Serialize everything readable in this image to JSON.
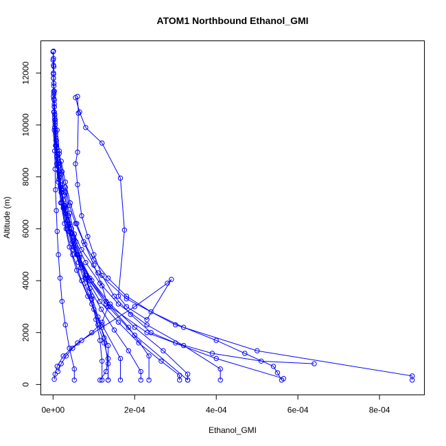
{
  "chart_data": {
    "type": "line",
    "title": "ATOM1 Northbound Ethanol_GMI",
    "xlabel": "Ethanol_GMI",
    "ylabel": "Altitude (m)",
    "xlim": [
      -3e-05,
      0.00091
    ],
    "ylim": [
      -400,
      13240
    ],
    "x_ticks": [
      0,
      0.0002,
      0.0004,
      0.0006,
      0.0008
    ],
    "x_tick_labels": [
      "0e+00",
      "2e-04",
      "4e-04",
      "6e-04",
      "8e-04"
    ],
    "y_ticks": [
      0,
      2000,
      4000,
      6000,
      8000,
      10000,
      12000
    ],
    "y_tick_labels": [
      "0",
      "2000",
      "4000",
      "6000",
      "8000",
      "10000",
      "12000"
    ],
    "series_color": "#0000ff",
    "marker": "open-circle",
    "grid": false,
    "legend": "none",
    "series": [
      {
        "x": [
          1e-06,
          1e-06,
          2e-06,
          1e-06,
          2e-06,
          3e-06,
          2e-06,
          3e-06,
          4e-06,
          5e-06,
          6e-06,
          8e-06,
          1e-05,
          1.2e-05,
          1.5e-05,
          2e-05,
          2.5e-05,
          3.5e-05,
          5e-05,
          8e-05,
          0.00013,
          0.0002,
          0.00033
        ],
        "y": [
          12840,
          12560,
          12250,
          11950,
          11600,
          11300,
          11000,
          10700,
          10400,
          10100,
          9800,
          9400,
          9000,
          8500,
          8000,
          7400,
          6800,
          6000,
          5200,
          4200,
          3100,
          1900,
          170
        ]
      },
      {
        "x": [
          0.0,
          1e-06,
          1e-06,
          2e-06,
          3e-06,
          4e-06,
          6e-06,
          9e-06,
          1.3e-05,
          1.8e-05,
          2.6e-05,
          4e-05,
          6e-05,
          9e-05,
          0.00014,
          0.00023,
          0.0004,
          0.000565
        ],
        "y": [
          12820,
          12300,
          11800,
          11300,
          10800,
          10300,
          9700,
          9100,
          8400,
          7600,
          6800,
          5900,
          5000,
          4000,
          3000,
          2000,
          1000,
          230
        ]
      },
      {
        "x": [
          0.0,
          1e-06,
          2e-06,
          2e-06,
          3e-06,
          5e-06,
          7e-06,
          1e-05,
          1.4e-05,
          2e-05,
          3e-05,
          4.5e-05,
          7e-05,
          0.00011,
          0.00018,
          0.0003,
          0.0005,
          0.00088,
          0.00088
        ],
        "y": [
          12500,
          12000,
          11500,
          11000,
          10500,
          10000,
          9400,
          8800,
          8200,
          7500,
          6800,
          6000,
          5200,
          4300,
          3300,
          2300,
          1300,
          330,
          170
        ]
      },
      {
        "x": [
          1e-06,
          2e-06,
          3e-06,
          4e-06,
          6e-06,
          8e-06,
          1.1e-05,
          1.5e-05,
          2e-05,
          2.8e-05,
          4e-05,
          5.6e-05,
          8e-05,
          0.000115,
          0.00016,
          0.00023,
          0.00032,
          0.00041,
          0.00041
        ],
        "y": [
          11800,
          11200,
          10700,
          10200,
          9700,
          9200,
          8700,
          8100,
          7500,
          6900,
          6200,
          5500,
          4700,
          3900,
          3100,
          2300,
          1500,
          600,
          170
        ]
      },
      {
        "x": [
          2e-06,
          3e-06,
          5e-06,
          7e-06,
          1e-05,
          1.5e-05,
          2.2e-05,
          3e-05,
          4.5e-05,
          6.5e-05,
          9.5e-05,
          0.00014,
          0.0002,
          0.00027,
          0.00033,
          0.00033
        ],
        "y": [
          11250,
          10700,
          10100,
          9500,
          8900,
          8200,
          7400,
          6600,
          5800,
          4900,
          4000,
          3100,
          2200,
          1300,
          400,
          170
        ]
      },
      {
        "x": [
          3e-06,
          5e-06,
          8e-06,
          1.2e-05,
          1.8e-05,
          2.7e-05,
          4e-05,
          6e-05,
          9e-05,
          0.00013,
          0.000185,
          0.000235,
          0.000235
        ],
        "y": [
          10950,
          10200,
          9400,
          8600,
          7700,
          6800,
          5900,
          5000,
          4100,
          3200,
          2200,
          1100,
          170
        ]
      },
      {
        "x": [
          1e-06,
          2e-06,
          4e-06,
          6e-06,
          9e-06,
          1.3e-05,
          1.9e-05,
          2.8e-05,
          4e-05,
          5.8e-05,
          8.5e-05,
          0.00012,
          0.000165,
          0.000165
        ],
        "y": [
          11100,
          10500,
          9900,
          9200,
          8500,
          7800,
          7000,
          6200,
          5300,
          4400,
          3400,
          2300,
          1000,
          170
        ]
      },
      {
        "x": [
          4e-06,
          6e-06,
          9e-06,
          1.4e-05,
          2.1e-05,
          3.2e-05,
          4.8e-05,
          7e-05,
          0.0001,
          0.000135,
          0.000135
        ],
        "y": [
          10400,
          9600,
          8800,
          7900,
          7000,
          6000,
          5000,
          4000,
          2900,
          1500,
          170
        ]
      },
      {
        "x": [
          2e-06,
          3e-06,
          4e-06,
          5e-06,
          6e-06,
          8e-06,
          1e-05,
          1.3e-05,
          1.7e-05,
          2.2e-05,
          3e-05,
          4e-05,
          5.2e-05,
          5.2e-05
        ],
        "y": [
          10500,
          9800,
          9000,
          8300,
          7500,
          6700,
          5900,
          5000,
          4100,
          3200,
          2300,
          1400,
          600,
          170
        ]
      },
      {
        "x": [
          5.5e-05,
          6.5e-05,
          8e-05,
          0.00012,
          0.000165,
          0.000175,
          0.00016,
          0.00018,
          0.00023,
          0.00029,
          0.00028,
          0.0002,
          0.00012,
          6e-05,
          2.5e-05,
          1e-05,
          5e-06,
          3e-06
        ],
        "y": [
          11050,
          10500,
          9900,
          9300,
          7950,
          5950,
          3400,
          3000,
          2500,
          4050,
          3900,
          3000,
          2200,
          1600,
          1100,
          700,
          400,
          200
        ]
      },
      {
        "x": [
          6e-05,
          6.2e-05,
          6e-05,
          5.5e-05,
          6e-05,
          7e-05,
          8.5e-05,
          0.0001,
          0.00012,
          0.00015,
          0.00019,
          0.00024,
          0.0003,
          0.00039,
          0.00051,
          0.00064
        ],
        "y": [
          11100,
          10450,
          8950,
          8500,
          7700,
          6500,
          5700,
          5000,
          4200,
          3400,
          2700,
          2000,
          1600,
          1200,
          900,
          800
        ]
      },
      {
        "x": [
          1e-05,
          1.5e-05,
          2.2e-05,
          3e-05,
          4e-05,
          5.2e-05,
          6.5e-05,
          8e-05,
          9.5e-05,
          0.00011,
          0.000125,
          0.000135,
          0.000135
        ],
        "y": [
          9800,
          9000,
          8200,
          7400,
          6600,
          5800,
          5000,
          4200,
          3400,
          2600,
          1800,
          800,
          170
        ]
      },
      {
        "x": [
          8e-06,
          1.2e-05,
          1.8e-05,
          2.6e-05,
          3.6e-05,
          5e-05,
          6.8e-05,
          9e-05,
          0.000118,
          0.00015,
          0.000185,
          0.000215,
          0.000215
        ],
        "y": [
          9300,
          8500,
          7700,
          6900,
          6100,
          5300,
          4500,
          3700,
          2900,
          2100,
          1300,
          500,
          170
        ]
      },
      {
        "x": [
          5e-06,
          8e-06,
          1.2e-05,
          1.8e-05,
          2.7e-05,
          4e-05,
          5.8e-05,
          8.2e-05,
          0.000115,
          0.00016,
          0.00021,
          0.000265,
          0.00031,
          0.00031
        ],
        "y": [
          10000,
          9200,
          8400,
          7600,
          6800,
          5900,
          5000,
          4100,
          3200,
          2400,
          1600,
          900,
          350,
          170
        ]
      },
      {
        "x": [
          2e-05,
          3e-05,
          4.2e-05,
          5.8e-05,
          7.8e-05,
          0.0001,
          0.00012,
          0.000135,
          0.00012,
          9.5e-05,
          7e-05,
          4.8e-05,
          3.2e-05,
          2e-05,
          1.2e-05
        ],
        "y": [
          8600,
          7800,
          7000,
          6200,
          5400,
          4600,
          3800,
          3000,
          2400,
          2000,
          1700,
          1400,
          1100,
          800,
          500
        ]
      },
      {
        "x": [
          3e-05,
          4e-05,
          5.5e-05,
          7.5e-05,
          0.0001,
          0.000135,
          0.00018,
          0.00024,
          0.00032,
          0.0004,
          0.00047,
          0.00054,
          0.00055,
          0.00056
        ],
        "y": [
          7600,
          6900,
          6200,
          5500,
          4800,
          4100,
          3400,
          2800,
          2200,
          1700,
          1200,
          700,
          450,
          170
        ]
      },
      {
        "x": [
          1.5e-05,
          2e-05,
          2.8e-05,
          3.8e-05,
          5e-05,
          6.5e-05,
          8e-05,
          9.5e-05,
          0.000105,
          0.000115,
          0.00012,
          0.00012
        ],
        "y": [
          8900,
          8100,
          7300,
          6500,
          5700,
          4900,
          4100,
          3300,
          2500,
          1700,
          900,
          170
        ]
      },
      {
        "x": [
          2.5e-05,
          3.5e-05,
          4.8e-05,
          6.2e-05,
          7.8e-05,
          9.5e-05,
          0.00011,
          0.000125,
          0.000135,
          0.00013,
          0.000115
        ],
        "y": [
          7100,
          6300,
          5500,
          4700,
          3900,
          3100,
          2300,
          1600,
          1000,
          500,
          170
        ]
      }
    ]
  }
}
